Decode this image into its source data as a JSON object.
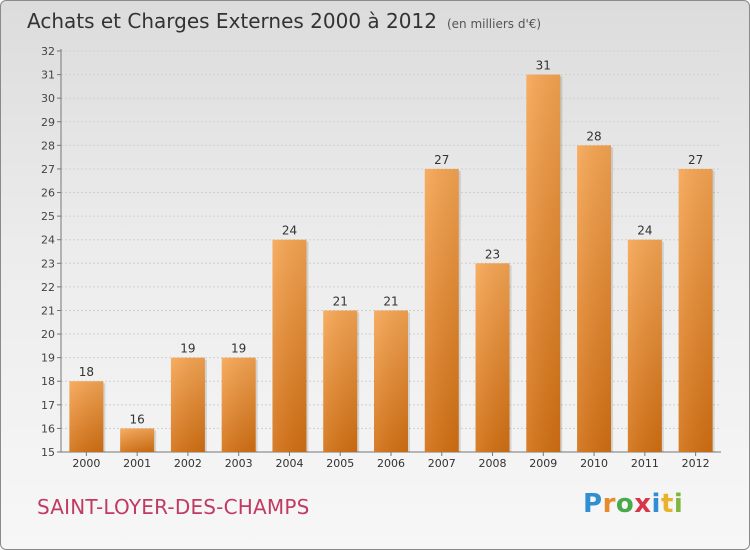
{
  "header": {
    "title": "Achats et Charges Externes 2000 à 2012",
    "unit": "(en milliers d'€)"
  },
  "footer": {
    "commune": "SAINT-LOYER-DES-CHAMPS",
    "logo_letters": [
      {
        "ch": "P",
        "color": "#2f8fd0"
      },
      {
        "ch": "r",
        "color": "#e8892b"
      },
      {
        "ch": "o",
        "color": "#4aa84a"
      },
      {
        "ch": "x",
        "color": "#d8344a"
      },
      {
        "ch": "i",
        "color": "#2f8fd0"
      },
      {
        "ch": "t",
        "color": "#e8b22b"
      },
      {
        "ch": "i",
        "color": "#7fb63f"
      }
    ]
  },
  "chart_data": {
    "type": "bar",
    "title": "Achats et Charges Externes 2000 à 2012",
    "subtitle": "(en milliers d'€)",
    "categories": [
      "2000",
      "2001",
      "2002",
      "2003",
      "2004",
      "2005",
      "2006",
      "2007",
      "2008",
      "2009",
      "2010",
      "2011",
      "2012"
    ],
    "values": [
      18,
      16,
      19,
      19,
      24,
      21,
      21,
      27,
      23,
      31,
      28,
      24,
      27
    ],
    "ylim": [
      15,
      32
    ],
    "yticks": [
      15,
      16,
      17,
      18,
      19,
      20,
      21,
      22,
      23,
      24,
      25,
      26,
      27,
      28,
      29,
      30,
      31,
      32
    ],
    "grid": true,
    "bar_color": "#f08a2a",
    "xlabel": "",
    "ylabel": ""
  }
}
